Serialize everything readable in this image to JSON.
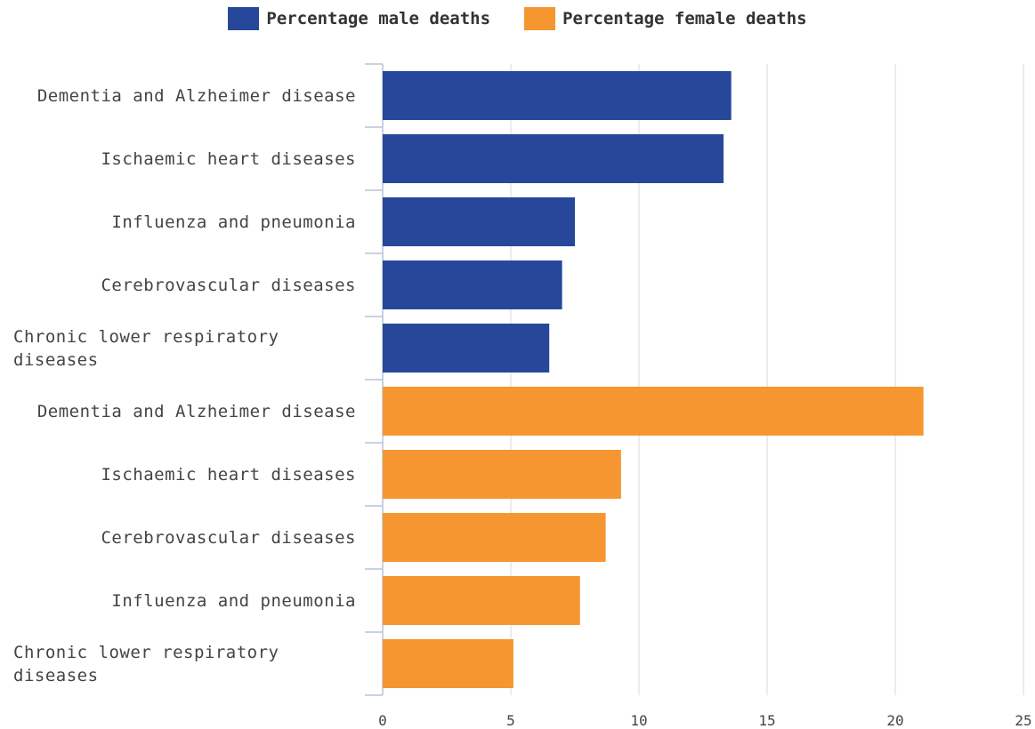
{
  "chart_data": {
    "type": "barh",
    "categories": [
      "Dementia and Alzheimer disease",
      "Ischaemic heart diseases",
      "Influenza and pneumonia",
      "Cerebrovascular diseases",
      "Chronic lower respiratory diseases",
      "Dementia and Alzheimer disease",
      "Ischaemic heart diseases",
      "Cerebrovascular diseases",
      "Influenza and pneumonia",
      "Chronic lower respiratory diseases"
    ],
    "series": [
      {
        "name": "Percentage male deaths",
        "color": "#27489a",
        "values": [
          13.6,
          13.3,
          7.5,
          7.0,
          6.5,
          null,
          null,
          null,
          null,
          null
        ]
      },
      {
        "name": "Percentage female deaths",
        "color": "#f59630",
        "values": [
          null,
          null,
          null,
          null,
          null,
          21.1,
          9.3,
          8.7,
          7.7,
          5.1
        ]
      }
    ],
    "xlim": [
      0,
      25
    ],
    "xticks": [
      0,
      5,
      10,
      15,
      20,
      25
    ],
    "grid": true,
    "legend": "top"
  }
}
